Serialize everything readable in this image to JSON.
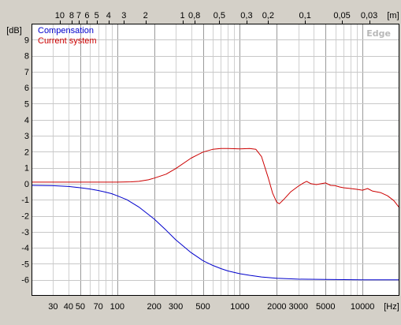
{
  "chart_data": {
    "type": "line",
    "title": "",
    "watermark": "Edge",
    "x_scale": "log",
    "xlim": [
      20,
      20000
    ],
    "ylim": [
      -7,
      10
    ],
    "xunit": "[Hz]",
    "yunit": "[dB]",
    "top_unit": "[m]",
    "grid": true,
    "legend_position": "top-left",
    "x_major_ticks": [
      {
        "v": 30,
        "label": "30"
      },
      {
        "v": 40,
        "label": "40"
      },
      {
        "v": 50,
        "label": "50"
      },
      {
        "v": 70,
        "label": "70"
      },
      {
        "v": 100,
        "label": "100"
      },
      {
        "v": 200,
        "label": "200"
      },
      {
        "v": 300,
        "label": "300"
      },
      {
        "v": 500,
        "label": "500"
      },
      {
        "v": 1000,
        "label": "1000"
      },
      {
        "v": 2000,
        "label": "2000"
      },
      {
        "v": 3000,
        "label": "3000"
      },
      {
        "v": 5000,
        "label": "5000"
      },
      {
        "v": 10000,
        "label": "10000"
      }
    ],
    "top_ticks": [
      {
        "v": 10,
        "label": "10"
      },
      {
        "v": 8,
        "label": "8"
      },
      {
        "v": 7,
        "label": "7"
      },
      {
        "v": 6,
        "label": "6"
      },
      {
        "v": 5,
        "label": "5"
      },
      {
        "v": 4,
        "label": "4"
      },
      {
        "v": 3,
        "label": "3"
      },
      {
        "v": 2,
        "label": "2"
      },
      {
        "v": 1,
        "label": "1"
      },
      {
        "v": 0.8,
        "label": "0,8"
      },
      {
        "v": 0.5,
        "label": "0,5"
      },
      {
        "v": 0.3,
        "label": "0,3"
      },
      {
        "v": 0.2,
        "label": "0,2"
      },
      {
        "v": 0.1,
        "label": "0,1"
      },
      {
        "v": 0.05,
        "label": "0,05"
      },
      {
        "v": 0.03,
        "label": "0,03"
      }
    ],
    "y_ticks": [
      9,
      8,
      7,
      6,
      5,
      4,
      3,
      2,
      1,
      0,
      -1,
      -2,
      -3,
      -4,
      -5,
      -6
    ],
    "series": [
      {
        "name": "Compensation",
        "color": "#0000cc",
        "points": [
          [
            20,
            -0.1
          ],
          [
            30,
            -0.12
          ],
          [
            40,
            -0.17
          ],
          [
            50,
            -0.25
          ],
          [
            60,
            -0.33
          ],
          [
            70,
            -0.42
          ],
          [
            80,
            -0.52
          ],
          [
            90,
            -0.62
          ],
          [
            100,
            -0.75
          ],
          [
            120,
            -1.0
          ],
          [
            150,
            -1.45
          ],
          [
            200,
            -2.2
          ],
          [
            250,
            -2.9
          ],
          [
            300,
            -3.5
          ],
          [
            400,
            -4.3
          ],
          [
            500,
            -4.8
          ],
          [
            600,
            -5.1
          ],
          [
            700,
            -5.3
          ],
          [
            800,
            -5.45
          ],
          [
            1000,
            -5.62
          ],
          [
            1200,
            -5.72
          ],
          [
            1500,
            -5.82
          ],
          [
            2000,
            -5.9
          ],
          [
            3000,
            -5.96
          ],
          [
            5000,
            -5.98
          ],
          [
            10000,
            -6.0
          ],
          [
            20000,
            -6.0
          ]
        ]
      },
      {
        "name": "Current system",
        "color": "#cc0000",
        "points": [
          [
            20,
            0.1
          ],
          [
            50,
            0.1
          ],
          [
            100,
            0.1
          ],
          [
            130,
            0.12
          ],
          [
            150,
            0.15
          ],
          [
            180,
            0.25
          ],
          [
            200,
            0.35
          ],
          [
            250,
            0.6
          ],
          [
            300,
            0.95
          ],
          [
            400,
            1.6
          ],
          [
            500,
            1.98
          ],
          [
            600,
            2.15
          ],
          [
            700,
            2.2
          ],
          [
            800,
            2.2
          ],
          [
            1000,
            2.18
          ],
          [
            1200,
            2.2
          ],
          [
            1350,
            2.15
          ],
          [
            1500,
            1.7
          ],
          [
            1700,
            0.4
          ],
          [
            1850,
            -0.6
          ],
          [
            2000,
            -1.15
          ],
          [
            2100,
            -1.25
          ],
          [
            2300,
            -0.95
          ],
          [
            2600,
            -0.5
          ],
          [
            3000,
            -0.15
          ],
          [
            3300,
            0.05
          ],
          [
            3500,
            0.15
          ],
          [
            3800,
            0.0
          ],
          [
            4200,
            -0.05
          ],
          [
            4600,
            0.0
          ],
          [
            5000,
            0.05
          ],
          [
            5500,
            -0.1
          ],
          [
            6000,
            -0.12
          ],
          [
            6500,
            -0.2
          ],
          [
            7000,
            -0.25
          ],
          [
            8000,
            -0.3
          ],
          [
            9000,
            -0.35
          ],
          [
            10000,
            -0.4
          ],
          [
            11000,
            -0.3
          ],
          [
            12000,
            -0.45
          ],
          [
            14000,
            -0.55
          ],
          [
            16000,
            -0.75
          ],
          [
            18000,
            -1.05
          ],
          [
            20000,
            -1.5
          ]
        ]
      }
    ]
  }
}
